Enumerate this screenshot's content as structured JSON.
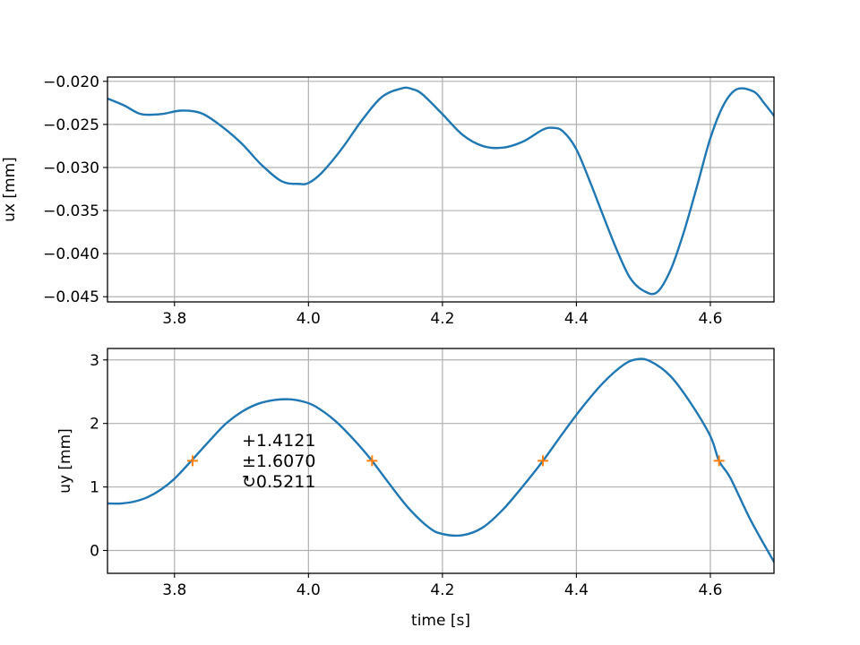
{
  "chart_data": [
    {
      "type": "line",
      "ylabel": "ux [mm]",
      "xlabel": "",
      "xlim": [
        3.7,
        4.695
      ],
      "ylim": [
        -0.0456,
        -0.0195
      ],
      "grid": true,
      "xticks": [
        3.8,
        4.0,
        4.2,
        4.4,
        4.6
      ],
      "xtick_labels": [
        "3.8",
        "4.0",
        "4.2",
        "4.4",
        "4.6"
      ],
      "yticks": [
        -0.02,
        -0.025,
        -0.03,
        -0.035,
        -0.04,
        -0.045
      ],
      "ytick_labels": [
        "−0.020",
        "−0.025",
        "−0.030",
        "−0.035",
        "−0.040",
        "−0.045"
      ],
      "series": [
        {
          "color": "#1f77b4",
          "x": [
            3.7,
            3.725,
            3.75,
            3.78,
            3.81,
            3.84,
            3.87,
            3.9,
            3.93,
            3.96,
            3.985,
            4.0,
            4.02,
            4.05,
            4.08,
            4.11,
            4.14,
            4.155,
            4.17,
            4.2,
            4.23,
            4.26,
            4.29,
            4.32,
            4.35,
            4.365,
            4.38,
            4.4,
            4.42,
            4.44,
            4.46,
            4.48,
            4.5,
            4.52,
            4.54,
            4.56,
            4.58,
            4.6,
            4.62,
            4.64,
            4.665,
            4.68,
            4.695
          ],
          "y": [
            -0.022,
            -0.0228,
            -0.0238,
            -0.0238,
            -0.0234,
            -0.0237,
            -0.0252,
            -0.0272,
            -0.0297,
            -0.0316,
            -0.0319,
            -0.0318,
            -0.0306,
            -0.0278,
            -0.0245,
            -0.0218,
            -0.0208,
            -0.0209,
            -0.0215,
            -0.0238,
            -0.0262,
            -0.0275,
            -0.0277,
            -0.027,
            -0.0256,
            -0.0254,
            -0.0258,
            -0.0279,
            -0.0316,
            -0.0356,
            -0.0395,
            -0.0428,
            -0.0443,
            -0.0445,
            -0.042,
            -0.0376,
            -0.0322,
            -0.0266,
            -0.0227,
            -0.0209,
            -0.0212,
            -0.0225,
            -0.024
          ]
        }
      ]
    },
    {
      "type": "line",
      "ylabel": "uy [mm]",
      "xlabel": "time [s]",
      "xlim": [
        3.7,
        4.695
      ],
      "ylim": [
        -0.36,
        3.18
      ],
      "grid": true,
      "xticks": [
        3.8,
        4.0,
        4.2,
        4.4,
        4.6
      ],
      "xtick_labels": [
        "3.8",
        "4.0",
        "4.2",
        "4.4",
        "4.6"
      ],
      "yticks": [
        0,
        1,
        2,
        3
      ],
      "ytick_labels": [
        "0",
        "1",
        "2",
        "3"
      ],
      "series": [
        {
          "color": "#1f77b4",
          "x": [
            3.7,
            3.72,
            3.74,
            3.76,
            3.78,
            3.8,
            3.825,
            3.85,
            3.875,
            3.9,
            3.925,
            3.95,
            3.97,
            3.99,
            4.01,
            4.04,
            4.07,
            4.095,
            4.12,
            4.15,
            4.18,
            4.2,
            4.23,
            4.26,
            4.29,
            4.32,
            4.35,
            4.38,
            4.41,
            4.44,
            4.47,
            4.49,
            4.51,
            4.54,
            4.57,
            4.6,
            4.613,
            4.63,
            4.66,
            4.695
          ],
          "y": [
            0.74,
            0.74,
            0.77,
            0.84,
            0.96,
            1.13,
            1.41,
            1.7,
            1.98,
            2.18,
            2.31,
            2.37,
            2.38,
            2.35,
            2.27,
            2.04,
            1.72,
            1.41,
            1.06,
            0.66,
            0.36,
            0.26,
            0.24,
            0.36,
            0.64,
            1.01,
            1.41,
            1.85,
            2.27,
            2.64,
            2.92,
            3.01,
            2.98,
            2.75,
            2.33,
            1.8,
            1.41,
            1.14,
            0.48,
            -0.18
          ]
        }
      ],
      "markers": {
        "symbol": "+",
        "color": "#ff7f0e",
        "x": [
          3.827,
          4.095,
          4.35,
          4.613
        ],
        "y": [
          1.4121,
          1.4121,
          1.4121,
          1.4121
        ]
      },
      "annotation": {
        "lines": [
          "+1.4121",
          "±1.6070",
          "↻0.5211"
        ]
      }
    }
  ]
}
